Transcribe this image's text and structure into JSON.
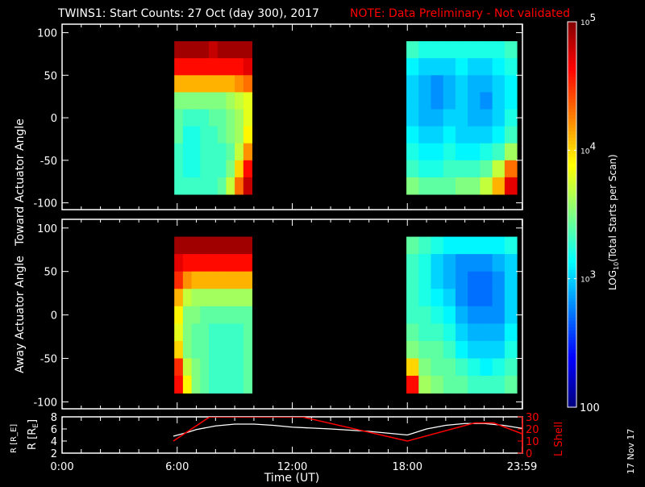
{
  "title": "TWINS1: Start Counts: 27 Oct (day 300), 2017",
  "note": "NOTE: Data Preliminary - Not validated",
  "date_stamp": "17 Nov 17",
  "colors": {
    "note": "#ff0000",
    "lshell": "#ff0000",
    "r_line": "#ffffff"
  },
  "chart_data": [
    {
      "type": "heatmap",
      "panel": "toward",
      "ylabel": "Toward Actuator Angle",
      "xlim_hours": [
        0,
        24
      ],
      "ylim": [
        -108,
        110
      ],
      "yticks": [
        100,
        50,
        0,
        -50,
        -100
      ],
      "ytick_labels": [
        "100",
        "50",
        "0",
        "-50",
        "-100"
      ],
      "angle_bins_top_to_bottom": [
        80,
        60,
        40,
        20,
        0,
        -20,
        -40,
        -60,
        -80
      ],
      "blocks": [
        {
          "t_start": 5.85,
          "col_width_hr": 0.45,
          "values_log10": [
            [
              4.9,
              4.6,
              4.1,
              3.5,
              3.4,
              3.4,
              3.3,
              3.3,
              3.3
            ],
            [
              4.9,
              4.6,
              4.1,
              3.5,
              3.3,
              3.2,
              3.2,
              3.2,
              3.3
            ],
            [
              4.9,
              4.6,
              4.1,
              3.5,
              3.3,
              3.2,
              3.2,
              3.2,
              3.3
            ],
            [
              4.9,
              4.6,
              4.1,
              3.5,
              3.3,
              3.3,
              3.3,
              3.3,
              3.3
            ],
            [
              4.8,
              4.6,
              4.1,
              3.5,
              3.4,
              3.3,
              3.3,
              3.3,
              3.3
            ],
            [
              4.9,
              4.6,
              4.1,
              3.5,
              3.4,
              3.4,
              3.3,
              3.3,
              3.4
            ],
            [
              4.9,
              4.6,
              4.1,
              3.6,
              3.5,
              3.5,
              3.4,
              3.5,
              3.7
            ],
            [
              4.9,
              4.6,
              4.2,
              3.7,
              3.6,
              3.6,
              3.7,
              4.0,
              4.3
            ],
            [
              4.9,
              4.7,
              4.3,
              3.8,
              3.8,
              3.9,
              4.2,
              4.6,
              4.8
            ]
          ]
        },
        {
          "t_start": 17.95,
          "col_width_hr": 0.64,
          "values_log10": [
            [
              3.3,
              3.1,
              3.0,
              3.0,
              3.0,
              3.1,
              3.2,
              3.3,
              3.5
            ],
            [
              3.2,
              3.0,
              2.9,
              2.9,
              2.9,
              3.0,
              3.1,
              3.2,
              3.4
            ],
            [
              3.2,
              3.0,
              2.8,
              2.8,
              2.9,
              3.0,
              3.1,
              3.2,
              3.4
            ],
            [
              3.2,
              3.0,
              2.9,
              2.9,
              3.0,
              3.1,
              3.2,
              3.3,
              3.4
            ],
            [
              3.2,
              3.1,
              3.0,
              3.0,
              3.0,
              3.0,
              3.1,
              3.3,
              3.5
            ],
            [
              3.2,
              3.0,
              2.9,
              2.9,
              2.9,
              3.0,
              3.1,
              3.3,
              3.5
            ],
            [
              3.2,
              3.0,
              2.9,
              2.8,
              2.9,
              3.0,
              3.2,
              3.4,
              3.7
            ],
            [
              3.2,
              3.1,
              3.0,
              3.0,
              3.0,
              3.1,
              3.3,
              3.7,
              4.1
            ],
            [
              3.3,
              3.2,
              3.1,
              3.1,
              3.2,
              3.3,
              3.6,
              4.3,
              4.7
            ]
          ]
        }
      ]
    },
    {
      "type": "heatmap",
      "panel": "away",
      "ylabel": "Away Actuator Angle",
      "xlim_hours": [
        0,
        24
      ],
      "ylim": [
        -108,
        110
      ],
      "yticks": [
        100,
        50,
        0,
        -50,
        -100
      ],
      "ytick_labels": [
        "100",
        "50",
        "0",
        "-50",
        "-100"
      ],
      "angle_bins_top_to_bottom": [
        80,
        60,
        40,
        20,
        0,
        -20,
        -40,
        -60,
        -80
      ],
      "blocks": [
        {
          "t_start": 5.85,
          "col_width_hr": 0.45,
          "values_log10": [
            [
              4.9,
              4.7,
              4.5,
              4.1,
              3.9,
              3.8,
              4.0,
              4.5,
              4.6
            ],
            [
              4.9,
              4.6,
              4.2,
              3.7,
              3.5,
              3.5,
              3.5,
              3.7,
              3.9
            ],
            [
              4.9,
              4.6,
              4.1,
              3.6,
              3.5,
              3.4,
              3.4,
              3.5,
              3.5
            ],
            [
              4.9,
              4.6,
              4.1,
              3.6,
              3.4,
              3.4,
              3.4,
              3.4,
              3.4
            ],
            [
              4.9,
              4.6,
              4.1,
              3.6,
              3.4,
              3.3,
              3.3,
              3.3,
              3.3
            ],
            [
              4.9,
              4.6,
              4.1,
              3.6,
              3.4,
              3.3,
              3.3,
              3.3,
              3.3
            ],
            [
              4.9,
              4.6,
              4.1,
              3.6,
              3.4,
              3.3,
              3.3,
              3.3,
              3.3
            ],
            [
              4.9,
              4.6,
              4.1,
              3.6,
              3.4,
              3.3,
              3.3,
              3.3,
              3.3
            ],
            [
              4.9,
              4.6,
              4.1,
              3.6,
              3.4,
              3.4,
              3.4,
              3.4,
              3.4
            ]
          ]
        },
        {
          "t_start": 17.95,
          "col_width_hr": 0.64,
          "values_log10": [
            [
              3.4,
              3.3,
              3.3,
              3.3,
              3.3,
              3.4,
              3.5,
              4.0,
              4.6
            ],
            [
              3.3,
              3.2,
              3.2,
              3.2,
              3.3,
              3.3,
              3.4,
              3.5,
              3.6
            ],
            [
              3.2,
              3.0,
              3.0,
              3.1,
              3.2,
              3.3,
              3.4,
              3.4,
              3.5
            ],
            [
              3.1,
              2.9,
              2.9,
              3.0,
              3.1,
              3.2,
              3.3,
              3.4,
              3.4
            ],
            [
              3.1,
              2.8,
              2.8,
              2.8,
              2.9,
              3.0,
              3.1,
              3.3,
              3.4
            ],
            [
              3.1,
              2.8,
              2.7,
              2.7,
              2.8,
              2.9,
              3.0,
              3.2,
              3.3
            ],
            [
              3.1,
              2.8,
              2.7,
              2.7,
              2.8,
              2.9,
              3.0,
              3.1,
              3.3
            ],
            [
              3.1,
              2.9,
              2.8,
              2.8,
              2.8,
              2.9,
              3.0,
              3.2,
              3.3
            ],
            [
              3.2,
              3.0,
              3.0,
              3.0,
              3.0,
              3.1,
              3.2,
              3.3,
              3.4
            ]
          ]
        }
      ]
    },
    {
      "type": "line",
      "panel": "orbit",
      "ylabel": "R [R_E]",
      "ylabel_main": "R [R",
      "ylabel_sub": "E",
      "ylabel_close": "]",
      "ylim": [
        2,
        8
      ],
      "yticks": [
        "2",
        "4",
        "6",
        "8"
      ],
      "y2label": "L Shell",
      "y2lim": [
        0,
        30
      ],
      "y2ticks": [
        "0",
        "10",
        "20",
        "30"
      ],
      "xlabel": "Time (UT)",
      "xticks": [
        0,
        6,
        12,
        18,
        23.98
      ],
      "xtick_labels": [
        "0:00",
        "6:00",
        "12:00",
        "18:00",
        "23:59"
      ],
      "series": [
        {
          "name": "R",
          "x": [
            5.8,
            6.5,
            7,
            8,
            9,
            10,
            11,
            12,
            14,
            16,
            18,
            19,
            20,
            21,
            22,
            23,
            23.98
          ],
          "y": [
            4.8,
            5.4,
            5.9,
            6.5,
            6.8,
            6.8,
            6.6,
            6.3,
            6.0,
            5.6,
            5.0,
            6.0,
            6.6,
            6.9,
            6.9,
            6.6,
            6.1
          ]
        },
        {
          "name": "L Shell",
          "x": [
            5.8,
            7.7,
            12.5,
            18,
            21.5,
            22.5,
            23.98
          ],
          "y": [
            10,
            30,
            30,
            10,
            25,
            25,
            16
          ]
        }
      ]
    }
  ],
  "colorbar": {
    "label": "LOG10(Total Starts per Scan)",
    "label_main": "LOG",
    "label_sub": "10",
    "label_rest": "(Total Starts per Scan)",
    "range_log10": [
      2,
      5
    ],
    "ticks": [
      {
        "base": "10",
        "exp": "5",
        "value_log10": 5
      },
      {
        "base": "10",
        "exp": "4",
        "value_log10": 4
      },
      {
        "base": "10",
        "exp": "3",
        "value_log10": 3
      }
    ],
    "bottom_label": "100"
  }
}
